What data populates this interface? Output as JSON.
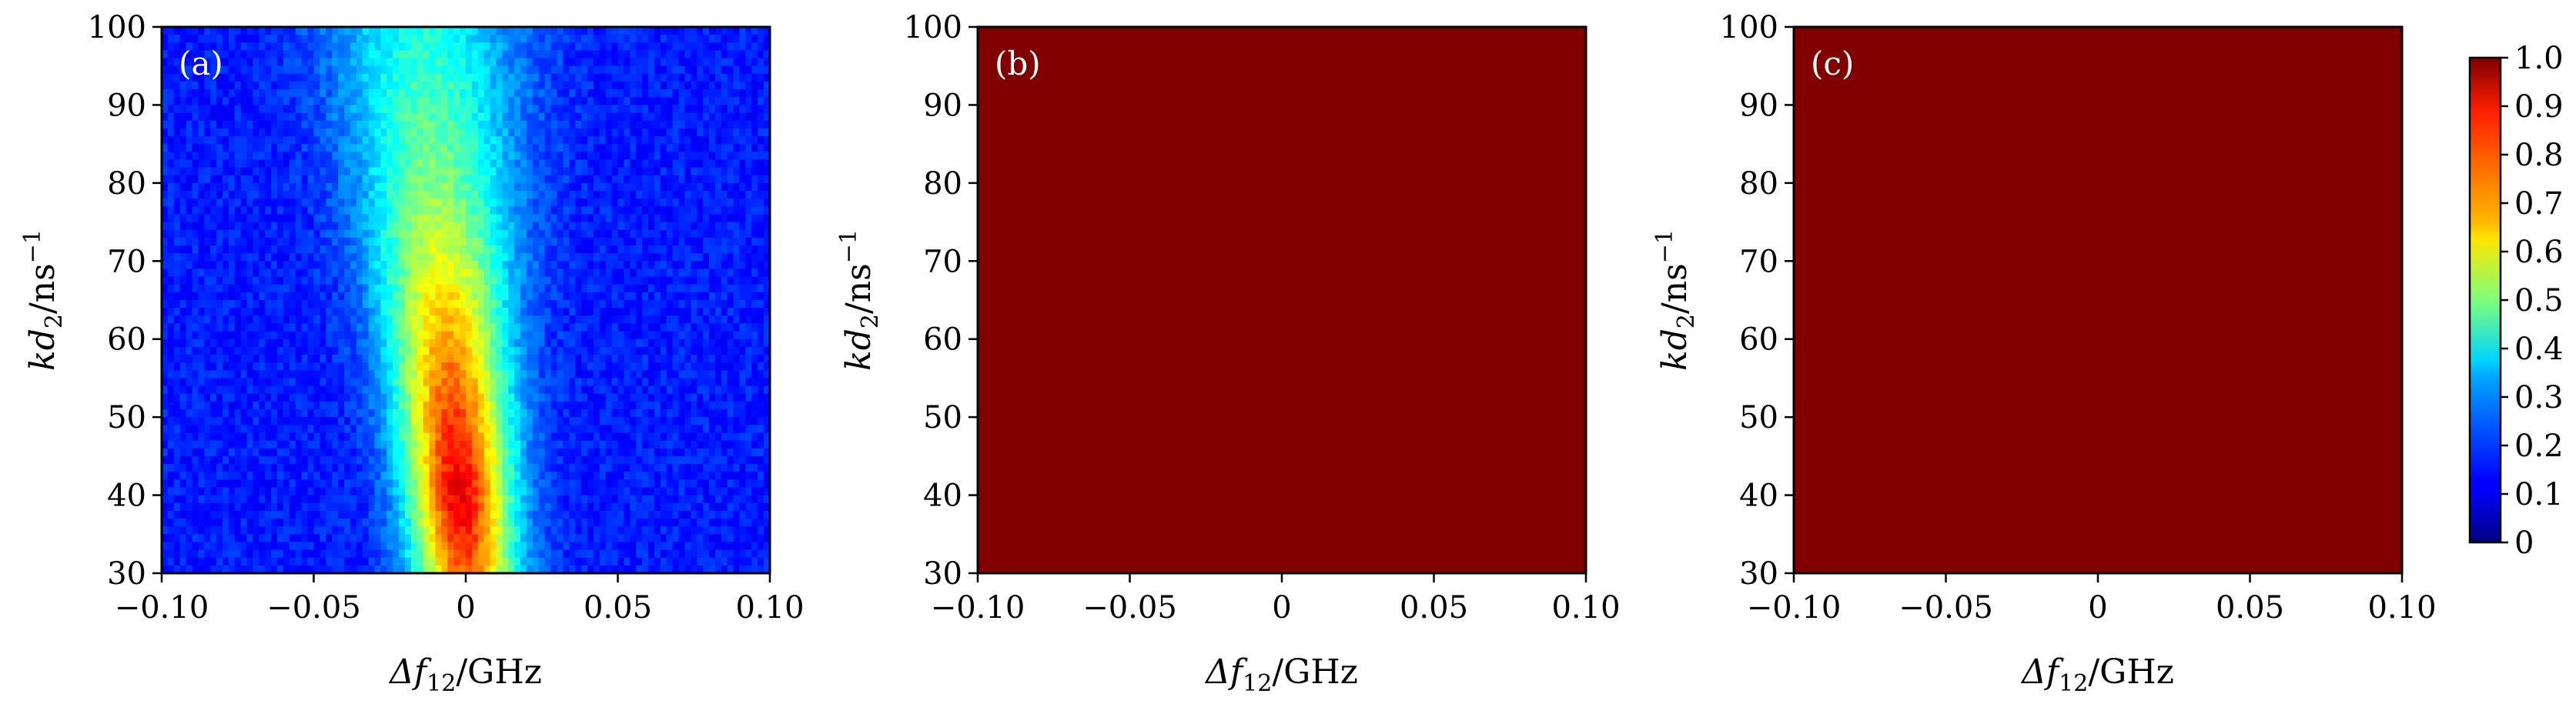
{
  "chart_data": [
    {
      "type": "heatmap",
      "panel_label": "(a)",
      "x_label": {
        "main": "Δf",
        "sub": "12",
        "unit": "/GHz"
      },
      "y_label": {
        "main": "kd",
        "sub": "2",
        "unit": "/ns",
        "sup": "−1"
      },
      "xlim": [
        -0.1,
        0.1
      ],
      "ylim": [
        30,
        100
      ],
      "x_ticks": [
        -0.1,
        -0.05,
        0,
        0.05,
        0.1
      ],
      "x_tick_labels": [
        "−0.10",
        "−0.05",
        "0",
        "0.05",
        "0.10"
      ],
      "y_ticks": [
        30,
        40,
        50,
        60,
        70,
        80,
        90,
        100
      ],
      "y_tick_labels": [
        "30",
        "40",
        "50",
        "60",
        "70",
        "80",
        "90",
        "100"
      ],
      "description_of_field": "peaked ridge near Δf12 ≈ 0, strongest (~0.9–1.0) around kd2 ≈ 35–45, weakening to ~0.4 toward kd2 = 100; background ~0.15",
      "ridge_profile": {
        "kd2": [
          30,
          40,
          50,
          60,
          70,
          80,
          90,
          100
        ],
        "center_dfreq": [
          0.0,
          -0.002,
          -0.004,
          -0.006,
          -0.008,
          -0.01,
          -0.012,
          -0.014
        ],
        "peak_value": [
          0.78,
          0.9,
          0.82,
          0.72,
          0.6,
          0.5,
          0.45,
          0.4
        ],
        "width_ghz": [
          0.012,
          0.012,
          0.013,
          0.014,
          0.016,
          0.018,
          0.02,
          0.022
        ]
      },
      "background_value": 0.15
    },
    {
      "type": "heatmap",
      "panel_label": "(b)",
      "x_label": {
        "main": "Δf",
        "sub": "12",
        "unit": "/GHz"
      },
      "y_label": {
        "main": "kd",
        "sub": "2",
        "unit": "/ns",
        "sup": "−1"
      },
      "xlim": [
        -0.1,
        0.1
      ],
      "ylim": [
        30,
        100
      ],
      "x_ticks": [
        -0.1,
        -0.05,
        0,
        0.05,
        0.1
      ],
      "x_tick_labels": [
        "−0.10",
        "−0.05",
        "0",
        "0.05",
        "0.10"
      ],
      "y_ticks": [
        30,
        40,
        50,
        60,
        70,
        80,
        90,
        100
      ],
      "y_tick_labels": [
        "30",
        "40",
        "50",
        "60",
        "70",
        "80",
        "90",
        "100"
      ],
      "uniform_value": 1.0
    },
    {
      "type": "heatmap",
      "panel_label": "(c)",
      "x_label": {
        "main": "Δf",
        "sub": "12",
        "unit": "/GHz"
      },
      "y_label": {
        "main": "kd",
        "sub": "2",
        "unit": "/ns",
        "sup": "−1"
      },
      "xlim": [
        -0.1,
        0.1
      ],
      "ylim": [
        30,
        100
      ],
      "x_ticks": [
        -0.1,
        -0.05,
        0,
        0.05,
        0.1
      ],
      "x_tick_labels": [
        "−0.10",
        "−0.05",
        "0",
        "0.05",
        "0.10"
      ],
      "y_ticks": [
        30,
        40,
        50,
        60,
        70,
        80,
        90,
        100
      ],
      "y_tick_labels": [
        "30",
        "40",
        "50",
        "60",
        "70",
        "80",
        "90",
        "100"
      ],
      "uniform_value": 1.0
    }
  ],
  "colorbar": {
    "colormap": "jet",
    "range": [
      0,
      1
    ],
    "ticks": [
      0,
      0.1,
      0.2,
      0.3,
      0.4,
      0.5,
      0.6,
      0.7,
      0.8,
      0.9,
      1.0
    ],
    "tick_labels": [
      "0",
      "0.1",
      "0.2",
      "0.3",
      "0.4",
      "0.5",
      "0.6",
      "0.7",
      "0.8",
      "0.9",
      "1.0"
    ]
  }
}
